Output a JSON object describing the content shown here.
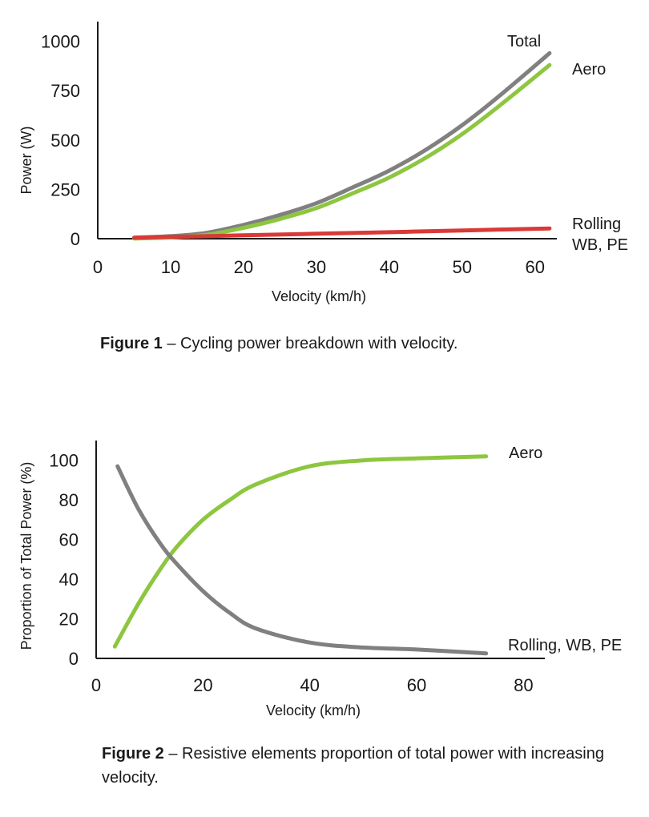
{
  "colors": {
    "aero": "#8dc63f",
    "total": "#808080",
    "rolling": "#d93a36",
    "other": "#808080",
    "axis": "#1a1a1a"
  },
  "figure1": {
    "caption_label": "Figure 1",
    "caption_text": " – Cycling power breakdown with velocity."
  },
  "figure2": {
    "caption_label": "Figure 2",
    "caption_text": " – Resistive elements proportion of total power with increasing velocity."
  },
  "chart_data": [
    {
      "type": "line",
      "title": "",
      "xlabel": "Velocity (km/h)",
      "ylabel": "Power (W)",
      "xlim": [
        0,
        63
      ],
      "ylim": [
        0,
        1100
      ],
      "xticks": [
        0,
        10,
        20,
        30,
        40,
        50,
        60
      ],
      "yticks": [
        0,
        250,
        500,
        750,
        1000
      ],
      "grid": false,
      "series": [
        {
          "name": "Total",
          "color": "#808080",
          "x": [
            5,
            10,
            15,
            20,
            25,
            30,
            35,
            40,
            45,
            50,
            55,
            62
          ],
          "y": [
            5,
            13,
            30,
            70,
            120,
            180,
            260,
            345,
            450,
            575,
            720,
            940
          ]
        },
        {
          "name": "Aero",
          "color": "#8dc63f",
          "x": [
            5,
            10,
            15,
            20,
            25,
            30,
            35,
            40,
            45,
            50,
            55,
            62
          ],
          "y": [
            1,
            6,
            20,
            55,
            100,
            155,
            230,
            310,
            410,
            530,
            670,
            880
          ]
        },
        {
          "name": "Rolling\nWB, PE",
          "color": "#d93a36",
          "x": [
            5,
            10,
            20,
            30,
            40,
            50,
            62
          ],
          "y": [
            5,
            9,
            17,
            25,
            33,
            42,
            52
          ]
        }
      ]
    },
    {
      "type": "line",
      "title": "",
      "xlabel": "Velocity (km/h)",
      "ylabel": "Proportion of Total Power (%)",
      "xlim": [
        0,
        84
      ],
      "ylim": [
        0,
        110
      ],
      "xticks": [
        0,
        20,
        40,
        60,
        80
      ],
      "yticks": [
        0,
        20,
        40,
        60,
        80,
        100
      ],
      "grid": false,
      "series": [
        {
          "name": "Aero",
          "color": "#8dc63f",
          "x": [
            3.5,
            8,
            12,
            15,
            20,
            25,
            30,
            40,
            50,
            60,
            73
          ],
          "y": [
            6,
            28,
            45,
            56,
            70,
            80,
            88,
            97,
            100,
            101,
            102
          ]
        },
        {
          "name": "Rolling, WB, PE",
          "color": "#808080",
          "x": [
            4,
            8,
            12,
            15,
            20,
            25,
            30,
            40,
            50,
            60,
            73
          ],
          "y": [
            97,
            75,
            58,
            48,
            34,
            23,
            15,
            8,
            5.5,
            4.5,
            2.5
          ]
        }
      ]
    }
  ]
}
